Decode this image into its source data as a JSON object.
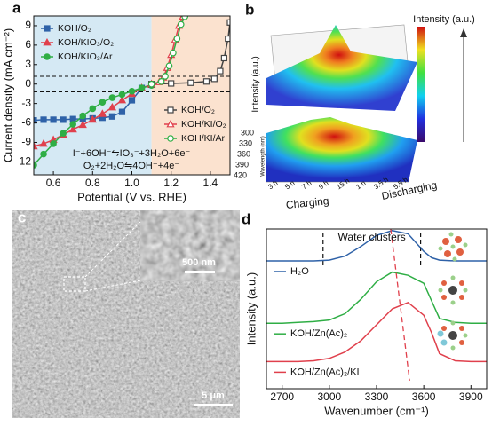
{
  "chart_data": [
    {
      "type": "line",
      "panel": "a",
      "xlabel": "Potential (V vs. RHE)",
      "ylabel": "Current density (mA cm⁻²)",
      "xlim": [
        0.5,
        1.5
      ],
      "ylim": [
        -14,
        10.5
      ],
      "xticks": [
        0.6,
        0.8,
        {
          "value": 1,
          "label": "1.0"
        },
        1.2,
        1.4
      ],
      "yticks": [
        -12,
        -9,
        -6,
        -3,
        0,
        3,
        6,
        9
      ],
      "regions": [
        {
          "x": [
            0.5,
            1.1
          ],
          "color": "#d5e9f4"
        },
        {
          "x": [
            1.1,
            1.5
          ],
          "color": "#fbe2cf"
        }
      ],
      "hlines": [
        1.2,
        -1.2
      ],
      "annotations": [
        "I⁻+6OH⁻⇋IO₃⁻+3H₂O+6e⁻",
        "O₂+2H₂O⇋4OH⁻+4e⁻"
      ],
      "series": [
        {
          "name": "KOH/O₂",
          "color": "#2f62a8",
          "marker": "square",
          "filled": true,
          "legend": "upper left",
          "x": [
            0.5,
            0.55,
            0.6,
            0.65,
            0.7,
            0.75,
            0.8,
            0.85,
            0.9,
            0.95,
            1.0,
            1.05,
            1.1
          ],
          "values": [
            -5.6,
            -5.5,
            -5.5,
            -5.5,
            -5.4,
            -5.4,
            -5.3,
            -5.2,
            -5.0,
            -4.3,
            -2.5,
            -0.6,
            -0.1
          ]
        },
        {
          "name": "KOH/KIO₃/O₂",
          "color": "#e0404c",
          "marker": "triangle",
          "filled": true,
          "legend": "upper left",
          "x": [
            0.5,
            0.55,
            0.6,
            0.65,
            0.7,
            0.75,
            0.8,
            0.85,
            0.9,
            0.95,
            1.0,
            1.05,
            1.1
          ],
          "values": [
            -9.6,
            -9.2,
            -8.6,
            -7.8,
            -7.0,
            -6.3,
            -5.5,
            -4.6,
            -3.6,
            -2.5,
            -1.5,
            -0.6,
            -0.1
          ]
        },
        {
          "name": "KOH/KIO₃/Ar",
          "color": "#2fae45",
          "marker": "circle",
          "filled": true,
          "legend": "upper left",
          "x": [
            0.5,
            0.55,
            0.6,
            0.65,
            0.7,
            0.75,
            0.8,
            0.85,
            0.9,
            0.95,
            1.0,
            1.05,
            1.1
          ],
          "values": [
            -12.5,
            -10.8,
            -9.2,
            -7.6,
            -6.2,
            -4.9,
            -3.8,
            -2.8,
            -2.1,
            -1.6,
            -1.1,
            -0.6,
            -0.2
          ]
        },
        {
          "name": "KOH/O₂",
          "color": "#444444",
          "marker": "square",
          "filled": false,
          "legend": "center right",
          "x": [
            1.1,
            1.2,
            1.3,
            1.38,
            1.42,
            1.45,
            1.47,
            1.49,
            1.5
          ],
          "values": [
            0,
            0.1,
            0.2,
            0.4,
            0.8,
            2,
            4,
            7,
            9.5
          ]
        },
        {
          "name": "KOH/KI/O₂",
          "color": "#e0404c",
          "marker": "triangle",
          "filled": false,
          "legend": "center right",
          "x": [
            1.1,
            1.14,
            1.16,
            1.18,
            1.2,
            1.22,
            1.24,
            1.26
          ],
          "values": [
            0,
            0.3,
            1,
            2.5,
            4.5,
            6.8,
            9,
            10.4
          ]
        },
        {
          "name": "KOH/KI/Ar",
          "color": "#2fae45",
          "marker": "circle",
          "filled": false,
          "legend": "center right",
          "x": [
            1.1,
            1.15,
            1.17,
            1.19,
            1.21,
            1.23,
            1.25,
            1.27
          ],
          "values": [
            0,
            0.4,
            1.2,
            2.8,
            4.8,
            7,
            9.2,
            10.4
          ]
        }
      ]
    },
    {
      "type": "line",
      "panel": "d",
      "xlabel": "Wavenumber (cm⁻¹)",
      "ylabel": "Intensity (a.u.)",
      "xlim": [
        2600,
        4000
      ],
      "ylim": [
        0,
        10
      ],
      "xticks": [
        2700,
        3000,
        3300,
        3600,
        3900
      ],
      "vlines": [
        2960,
        3580
      ],
      "region_label": "Water clusters",
      "guide_line": {
        "x": [
          3390,
          3510
        ],
        "y": [
          10,
          0.5
        ],
        "color": "#e0404c"
      },
      "x": [
        2600,
        2700,
        2800,
        2900,
        3000,
        3100,
        3200,
        3300,
        3400,
        3500,
        3600,
        3650,
        3700,
        3800,
        3900,
        4000
      ],
      "series": [
        {
          "name": "H₂O",
          "color": "#2f62a8",
          "values": [
            8.0,
            8.0,
            8.0,
            8.0,
            8.05,
            8.3,
            8.9,
            9.6,
            9.9,
            9.7,
            8.6,
            8.2,
            8.05,
            8.0,
            8.0,
            8.0
          ]
        },
        {
          "name": "KOH/Zn(Ac)₂",
          "color": "#2fae45",
          "values": [
            4.1,
            4.1,
            4.15,
            4.2,
            4.3,
            4.7,
            5.6,
            6.7,
            7.3,
            7.1,
            6.6,
            5.5,
            4.4,
            4.15,
            4.1,
            4.1
          ]
        },
        {
          "name": "KOH/Zn(Ac)₂/KI",
          "color": "#e0404c",
          "values": [
            1.7,
            1.7,
            1.7,
            1.75,
            1.9,
            2.3,
            3.0,
            4.0,
            5.0,
            5.4,
            4.6,
            3.5,
            2.2,
            1.75,
            1.7,
            1.7
          ]
        }
      ]
    }
  ],
  "panel_b": {
    "label": "b",
    "colorbar_label": "Intensity (a.u.)",
    "z_label": "Intensity (a.u.)",
    "y_label": "Wavelength (nm)",
    "y_ticks": [
      "300",
      "330",
      "360",
      "390",
      "420"
    ],
    "time_ticks": [
      "3 h",
      "5 h",
      "7 h",
      "9 h",
      "15 h",
      "1 h",
      "3.5 h",
      "5.5 h"
    ],
    "charging": "Charging",
    "discharging": "Discharging"
  },
  "panel_c": {
    "label": "c",
    "inset_scale": "500 nm",
    "scale": "5 μm"
  }
}
